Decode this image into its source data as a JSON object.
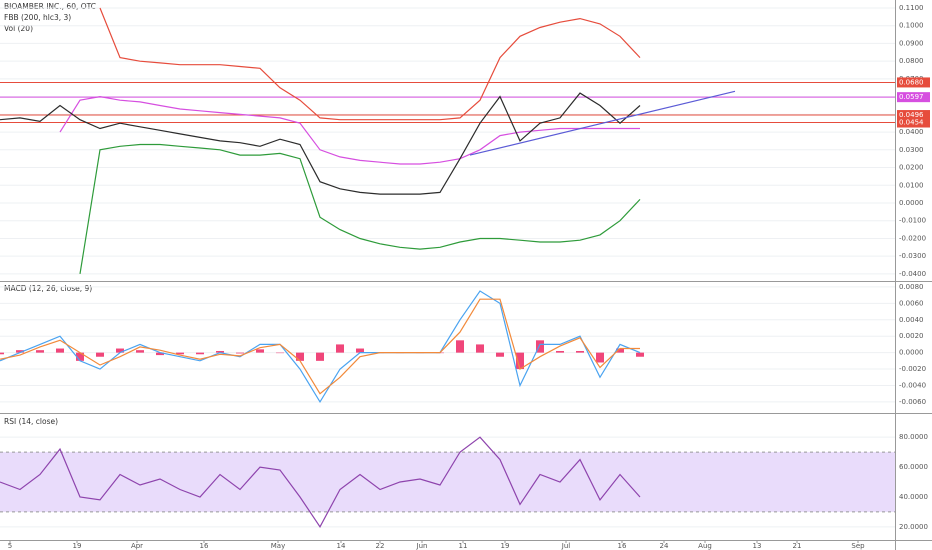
{
  "chart_data": [
    {
      "type": "line",
      "title": "BIOAMBER INC., 60, OTC",
      "indicators": [
        "FBB (200, hlc3, 3)",
        "Vol (20)"
      ],
      "x": [
        0,
        20,
        40,
        60,
        80,
        100,
        120,
        140,
        160,
        180,
        200,
        220,
        240,
        260,
        280,
        300,
        320,
        340,
        360,
        380,
        400,
        420,
        440,
        460,
        480,
        500,
        520,
        540,
        560,
        580,
        600,
        620,
        640
      ],
      "xlim": [
        0,
        895
      ],
      "ylim": [
        -0.044,
        0.1145
      ],
      "yticks": [
        {
          "value": -0.04,
          "label": "-0.0400"
        },
        {
          "value": -0.03,
          "label": "-0.0300"
        },
        {
          "value": -0.02,
          "label": "-0.0200"
        },
        {
          "value": -0.01,
          "label": "-0.0100"
        },
        {
          "value": 0,
          "label": "0.0000"
        },
        {
          "value": 0.01,
          "label": "0.0100"
        },
        {
          "value": 0.02,
          "label": "0.0200"
        },
        {
          "value": 0.03,
          "label": "0.0300"
        },
        {
          "value": 0.04,
          "label": "0.0400"
        },
        {
          "value": 0.05,
          "label": "0.0500"
        },
        {
          "value": 0.06,
          "label": "0.0600"
        },
        {
          "value": 0.07,
          "label": "0.0700"
        },
        {
          "value": 0.08,
          "label": "0.0800"
        },
        {
          "value": 0.09,
          "label": "0.0900"
        },
        {
          "value": 0.1,
          "label": "0.1000"
        },
        {
          "value": 0.11,
          "label": "0.1100"
        }
      ],
      "series": [
        {
          "color": "#e64c3c",
          "values": [
            null,
            null,
            null,
            null,
            null,
            0.11,
            0.082,
            0.08,
            0.079,
            0.078,
            0.078,
            0.078,
            0.077,
            0.076,
            0.065,
            0.058,
            0.048,
            0.047,
            0.047,
            0.047,
            0.047,
            0.047,
            0.047,
            0.048,
            0.058,
            0.082,
            0.094,
            0.099,
            0.102,
            0.104,
            0.101,
            0.094,
            0.082
          ]
        },
        {
          "color": "#d64fe0",
          "values": [
            null,
            null,
            null,
            0.04,
            0.058,
            0.06,
            0.058,
            0.057,
            0.055,
            0.053,
            0.052,
            0.051,
            0.05,
            0.049,
            0.048,
            0.045,
            0.03,
            0.026,
            0.024,
            0.023,
            0.022,
            0.022,
            0.023,
            0.025,
            0.03,
            0.038,
            0.04,
            0.041,
            0.042,
            0.042,
            0.042,
            0.042,
            0.042
          ]
        },
        {
          "color": "#2e9b3a",
          "values": [
            null,
            null,
            null,
            null,
            -0.04,
            0.03,
            0.032,
            0.033,
            0.033,
            0.032,
            0.031,
            0.03,
            0.027,
            0.027,
            0.028,
            0.025,
            -0.008,
            -0.015,
            -0.02,
            -0.023,
            -0.025,
            -0.026,
            -0.025,
            -0.022,
            -0.02,
            -0.02,
            -0.021,
            -0.022,
            -0.022,
            -0.021,
            -0.018,
            -0.01,
            0.002
          ]
        },
        {
          "color": "#2c2c2c",
          "values": [
            0.047,
            0.048,
            0.046,
            0.055,
            0.047,
            0.042,
            0.045,
            0.043,
            0.041,
            0.039,
            0.037,
            0.035,
            0.034,
            0.032,
            0.036,
            0.033,
            0.012,
            0.008,
            0.006,
            0.005,
            0.005,
            0.005,
            0.006,
            0.025,
            0.045,
            0.06,
            0.035,
            0.045,
            0.048,
            0.062,
            0.055,
            0.045,
            0.055
          ]
        }
      ],
      "trendline": {
        "color": "#5b5bd6",
        "x": [
          470,
          735
        ],
        "values": [
          0.027,
          0.063
        ]
      },
      "levels": {
        "values": [
          0.068,
          0.0597,
          0.0496,
          0.0454
        ],
        "value_labels": [
          "0.0680",
          "0.0597",
          "0.0496",
          "0.0454"
        ],
        "colors": [
          "#e64c3c",
          "#d64fe0",
          "#e64c3c",
          "#e64c3c"
        ]
      }
    },
    {
      "type": "line",
      "title": "MACD (12, 26, close, 9)",
      "x": [
        0,
        20,
        40,
        60,
        80,
        100,
        120,
        140,
        160,
        180,
        200,
        220,
        240,
        260,
        280,
        300,
        320,
        340,
        360,
        380,
        400,
        420,
        440,
        460,
        480,
        500,
        520,
        540,
        560,
        580,
        600,
        620,
        640
      ],
      "xlim": [
        0,
        895
      ],
      "ylim": [
        -0.00735,
        0.0086
      ],
      "yticks": [
        {
          "value": -0.006,
          "label": "-0.0060"
        },
        {
          "value": -0.004,
          "label": "-0.0040"
        },
        {
          "value": -0.002,
          "label": "-0.0020"
        },
        {
          "value": 0,
          "label": "0.0000"
        },
        {
          "value": 0.002,
          "label": "0.0020"
        },
        {
          "value": 0.004,
          "label": "0.0040"
        },
        {
          "value": 0.006,
          "label": "0.0060"
        },
        {
          "value": 0.008,
          "label": "0.0080"
        }
      ],
      "histogram": {
        "color": "#f0467a",
        "values": [
          -0.0002,
          0.0003,
          0.0003,
          0.0005,
          -0.001,
          -0.0005,
          0.0005,
          0.0003,
          -0.0003,
          -0.0002,
          -0.0002,
          0.0002,
          -0.0001,
          0.0004,
          0,
          -0.001,
          -0.001,
          0.001,
          0.0005,
          0,
          0,
          0,
          0,
          0.0015,
          0.001,
          -0.0005,
          -0.002,
          0.0015,
          0.0002,
          0.0002,
          -0.0012,
          0.0005,
          -0.0005
        ]
      },
      "series": [
        {
          "color": "#4aa3f0",
          "values": [
            -0.001,
            0,
            0.001,
            0.002,
            -0.001,
            -0.002,
            0,
            0.001,
            0,
            -0.0005,
            -0.001,
            0,
            -0.0005,
            0.001,
            0.001,
            -0.002,
            -0.006,
            -0.002,
            0,
            0,
            0,
            0,
            0,
            0.004,
            0.0075,
            0.006,
            -0.004,
            0.001,
            0.001,
            0.002,
            -0.003,
            0.001,
            0
          ]
        },
        {
          "color": "#f28a3b",
          "values": [
            -0.0008,
            -0.0003,
            0.0007,
            0.0015,
            0,
            -0.0015,
            -0.0005,
            0.0007,
            0.0003,
            -0.0003,
            -0.0008,
            -0.0002,
            -0.0004,
            0.0006,
            0.001,
            -0.001,
            -0.005,
            -0.003,
            -0.0005,
            0,
            0,
            0,
            0,
            0.0025,
            0.0065,
            0.0065,
            -0.002,
            -0.0005,
            0.0008,
            0.0018,
            -0.0018,
            0.0005,
            0.0005
          ]
        }
      ]
    },
    {
      "type": "line",
      "title": "RSI (14, close)",
      "x": [
        0,
        20,
        40,
        60,
        80,
        100,
        120,
        140,
        160,
        180,
        200,
        220,
        240,
        260,
        280,
        300,
        320,
        340,
        360,
        380,
        400,
        420,
        440,
        460,
        480,
        500,
        520,
        540,
        560,
        580,
        600,
        620,
        640
      ],
      "xlim": [
        0,
        895
      ],
      "ylim": [
        11.2,
        95.5
      ],
      "yticks": [
        {
          "value": 20,
          "label": "20.0000"
        },
        {
          "value": 40,
          "label": "40.0000"
        },
        {
          "value": 60,
          "label": "60.0000"
        },
        {
          "value": 80,
          "label": "80.0000"
        }
      ],
      "band": [
        30,
        70
      ],
      "band_color": "#e9dcfb",
      "series": [
        {
          "color": "#8e44ad",
          "values": [
            50,
            45,
            55,
            72,
            40,
            38,
            55,
            48,
            52,
            45,
            40,
            55,
            45,
            60,
            58,
            40,
            20,
            45,
            55,
            45,
            50,
            52,
            48,
            70,
            80,
            65,
            35,
            55,
            50,
            65,
            38,
            55,
            40
          ]
        }
      ],
      "xticks": [
        {
          "value": 10,
          "label": "5"
        },
        {
          "value": 77,
          "label": "19"
        },
        {
          "value": 137,
          "label": "Apr"
        },
        {
          "value": 204,
          "label": "16"
        },
        {
          "value": 278,
          "label": "May"
        },
        {
          "value": 341,
          "label": "14"
        },
        {
          "value": 380,
          "label": "22"
        },
        {
          "value": 422,
          "label": "Jun"
        },
        {
          "value": 463,
          "label": "11"
        },
        {
          "value": 505,
          "label": "19"
        },
        {
          "value": 566,
          "label": "Jul"
        },
        {
          "value": 622,
          "label": "16"
        },
        {
          "value": 664,
          "label": "24"
        },
        {
          "value": 705,
          "label": "Aug"
        },
        {
          "value": 757,
          "label": "13"
        },
        {
          "value": 797,
          "label": "21"
        },
        {
          "value": 858,
          "label": "Sep"
        }
      ]
    }
  ]
}
